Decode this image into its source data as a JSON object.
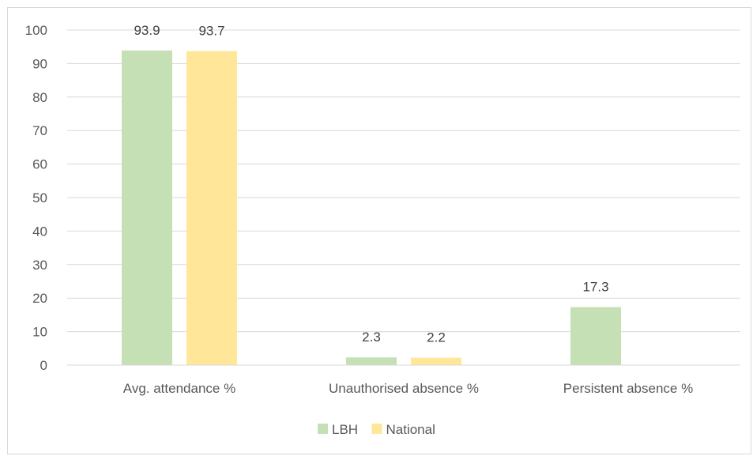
{
  "chart_data": {
    "type": "bar",
    "title": "",
    "xlabel": "",
    "ylabel": "",
    "categories": [
      "Avg. attendance %",
      "Unauthorised absence %",
      "Persistent absence %"
    ],
    "series": [
      {
        "name": "LBH",
        "color": "#c5e0b4",
        "values": [
          93.9,
          2.3,
          17.3
        ],
        "labels": [
          "93.9",
          "2.3",
          "17.3"
        ]
      },
      {
        "name": "National",
        "color": "#ffe699",
        "values": [
          93.7,
          2.2,
          null
        ],
        "labels": [
          "93.7",
          "2.2",
          ""
        ]
      }
    ],
    "ylim": [
      0,
      100
    ],
    "yticks": [
      0,
      10,
      20,
      30,
      40,
      50,
      60,
      70,
      80,
      90,
      100
    ],
    "ytick_labels": [
      "0",
      "10",
      "20",
      "30",
      "40",
      "50",
      "60",
      "70",
      "80",
      "90",
      "100"
    ],
    "grid": true,
    "grid_color": "#d9d9d9",
    "legend_position": "bottom"
  }
}
